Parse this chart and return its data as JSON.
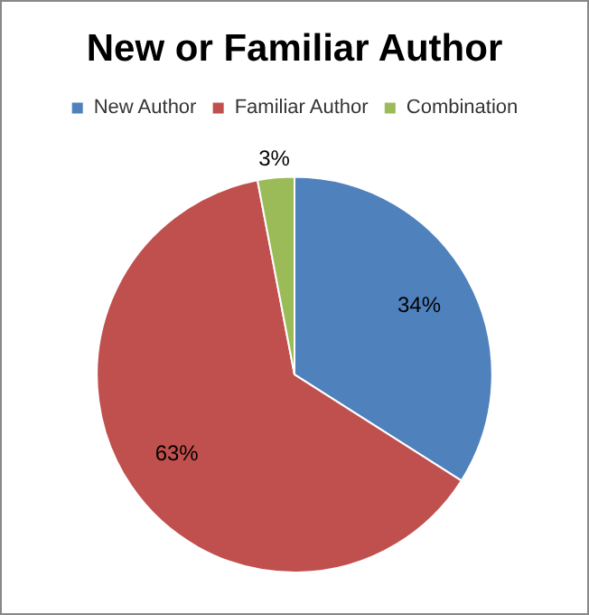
{
  "chart_data": {
    "type": "pie",
    "title": "New or Familiar Author",
    "categories": [
      "New Author",
      "Familiar Author",
      "Combination"
    ],
    "values": [
      34,
      63,
      3
    ],
    "colors": [
      "#4f81bd",
      "#c0504d",
      "#9bbb59"
    ],
    "value_labels": [
      "34%",
      "63%",
      "3%"
    ],
    "legend": "top"
  }
}
